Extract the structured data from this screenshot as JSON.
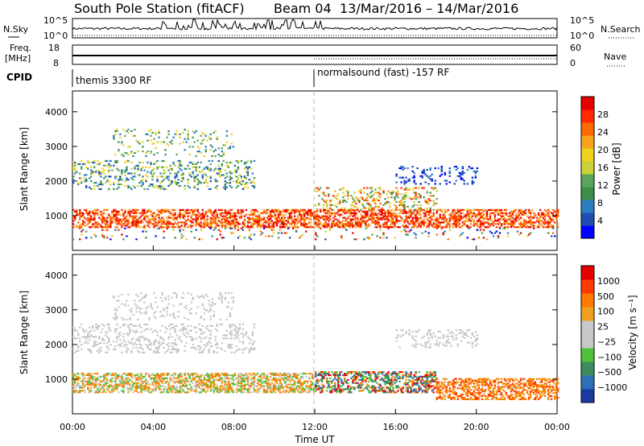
{
  "header": {
    "title": "South Pole Station (fitACF)",
    "beam": "Beam 04",
    "date_range": "13/Mar/2016 – 14/Mar/2016"
  },
  "status_panels": {
    "nsky_label": "N.Sky",
    "nsky_ticks": [
      "10^5",
      "10^0"
    ],
    "nsearch_label": "N.Search",
    "nsearch_ticks": [
      "10^5",
      "10^0"
    ],
    "freq_label_1": "Freq.",
    "freq_label_2": "[MHz]",
    "freq_ticks": [
      "18",
      "8"
    ],
    "nave_label": "Nave",
    "nave_ticks": [
      "60",
      "0"
    ],
    "cpid_label": "CPID",
    "cpid_segments": [
      {
        "name": "themis 3300 RF",
        "start_hour": 0,
        "end_hour": 12
      },
      {
        "name": "normalsound (fast) -157 RF",
        "start_hour": 12,
        "end_hour": 24
      }
    ]
  },
  "chart_data": [
    {
      "type": "heatmap",
      "panel": "power",
      "ylabel": "Slant Range [km]",
      "ylim": [
        0,
        4600
      ],
      "yticks": [
        "1000",
        "2000",
        "3000",
        "4000"
      ],
      "xlim_hours": [
        0,
        24
      ],
      "colorbar": {
        "label": "Power [dB]",
        "ticks": [
          "28",
          "24",
          "20",
          "16",
          "12",
          "8",
          "4"
        ],
        "colors": [
          "#0000ff",
          "#1e4fb0",
          "#2a7ec0",
          "#3c8f4a",
          "#5aa55c",
          "#c8d23a",
          "#f0d21e",
          "#f8a21e",
          "#ff6a00",
          "#ff2a00",
          "#e60000"
        ]
      },
      "bands": [
        {
          "level": "strong",
          "range_km": [
            700,
            1100
          ],
          "hours": [
            0,
            24
          ]
        },
        {
          "level": "medium",
          "range_km": [
            1800,
            2600
          ],
          "hours": [
            0,
            8
          ]
        },
        {
          "level": "weak",
          "range_km": [
            2700,
            3500
          ],
          "hours": [
            2,
            8
          ]
        }
      ]
    },
    {
      "type": "heatmap",
      "panel": "velocity",
      "ylabel": "Slant Range [km]",
      "ylim": [
        0,
        4600
      ],
      "yticks": [
        "1000",
        "2000",
        "3000",
        "4000"
      ],
      "xlim_hours": [
        0,
        24
      ],
      "xticks": [
        "00:00",
        "04:00",
        "08:00",
        "12:00",
        "16:00",
        "20:00",
        "00:00"
      ],
      "xlabel": "Time UT",
      "colorbar": {
        "label": "Velocity [m s⁻¹]",
        "ticks": [
          "1000",
          "500",
          "100",
          "25",
          "−25",
          "−100",
          "−500",
          "−1000"
        ],
        "colors": [
          "#1a3aa0",
          "#2d6fb8",
          "#3c8c5a",
          "#4fc23c",
          "#c8c8c8",
          "#c8c8c8",
          "#f0a01e",
          "#ff7a00",
          "#ff3a00",
          "#e60000"
        ]
      },
      "bands": [
        {
          "level": "ground_scatter",
          "range_km": [
            1800,
            3500
          ],
          "hours": [
            0,
            9
          ]
        },
        {
          "level": "flow",
          "range_km": [
            600,
            1100
          ],
          "hours": [
            0,
            24
          ]
        }
      ]
    }
  ]
}
